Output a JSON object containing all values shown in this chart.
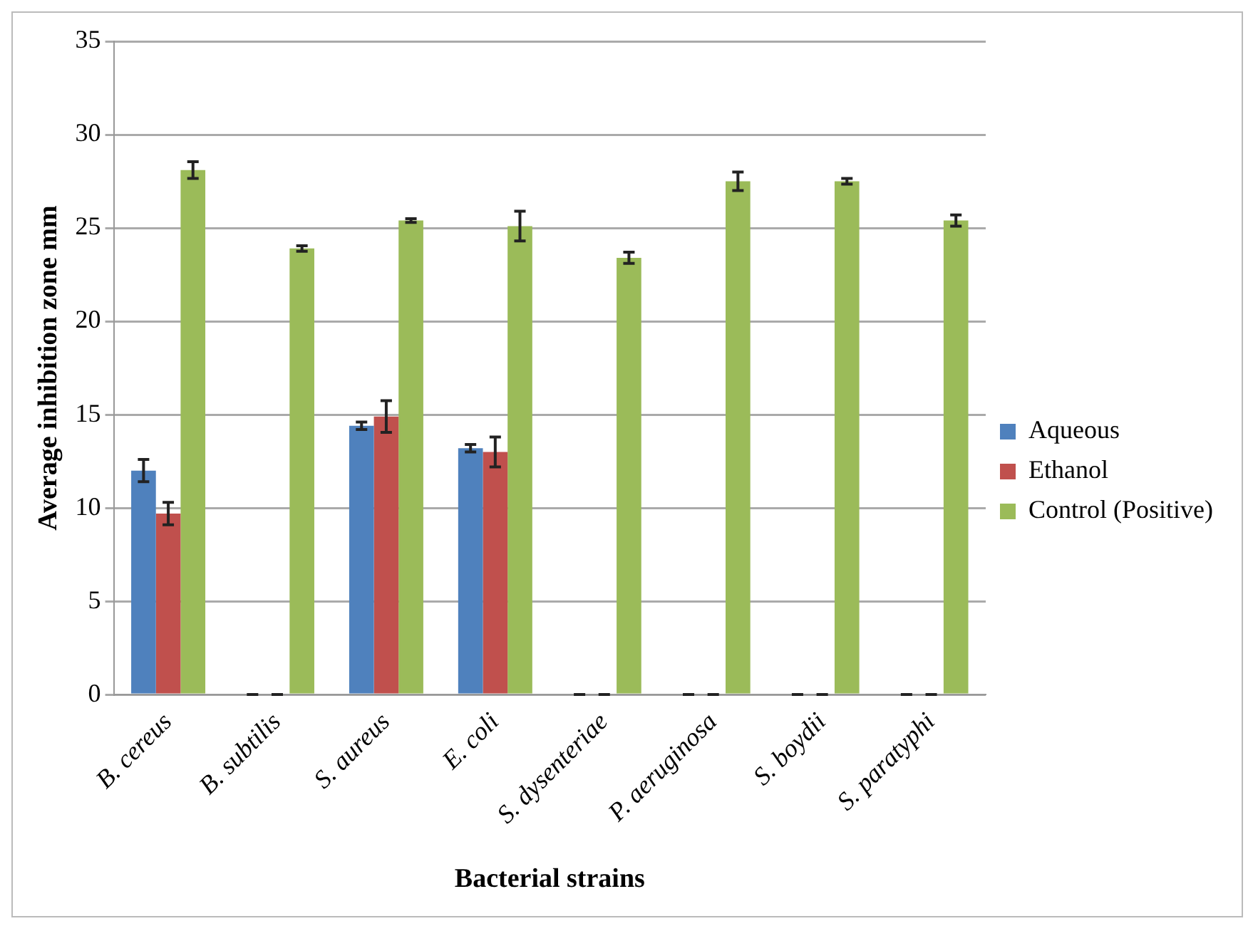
{
  "chart_data": {
    "type": "bar",
    "xlabel": "Bacterial strains",
    "ylabel": "Average inhibition zone mm",
    "categories": [
      "B. cereus",
      "B. subtilis",
      "S. aureus",
      "E. coli",
      "S. dysenteriae",
      "P. aeruginosa",
      "S. boydii",
      "S. paratyphi"
    ],
    "series": [
      {
        "name": "Aqueous",
        "color": "#4f81bd",
        "values": [
          12.0,
          0,
          14.4,
          13.2,
          0,
          0,
          0,
          0
        ],
        "errors": [
          0.6,
          0,
          0.2,
          0.2,
          0,
          0,
          0,
          0
        ]
      },
      {
        "name": "Ethanol",
        "color": "#c0504d",
        "values": [
          9.7,
          0,
          14.9,
          13.0,
          0,
          0,
          0,
          0
        ],
        "errors": [
          0.6,
          0,
          0.85,
          0.8,
          0,
          0,
          0,
          0
        ]
      },
      {
        "name": "Control (Positive)",
        "color": "#9bbb59",
        "values": [
          28.1,
          23.9,
          25.4,
          25.1,
          23.4,
          27.5,
          27.5,
          25.4
        ],
        "errors": [
          0.45,
          0.15,
          0.1,
          0.8,
          0.3,
          0.5,
          0.15,
          0.3
        ]
      }
    ],
    "ylim": [
      0,
      35
    ],
    "yticks": [
      0,
      5,
      10,
      15,
      20,
      25,
      30,
      35
    ],
    "grid": "y",
    "legend": "right"
  }
}
